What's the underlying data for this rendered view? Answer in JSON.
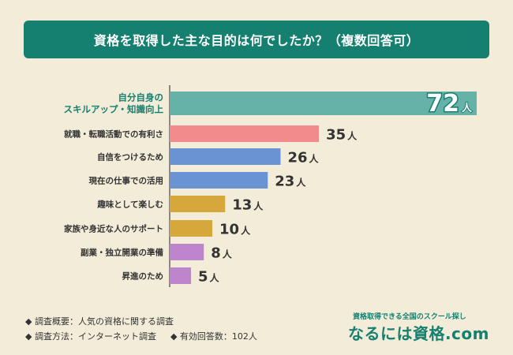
{
  "header": {
    "title": "資格を取得した主な目的は何でしたか？（複数回答可）"
  },
  "chart_data": {
    "type": "bar",
    "orientation": "horizontal",
    "title": "資格を取得した主な目的は何でしたか？（複数回答可）",
    "unit": "人",
    "categories": [
      [
        "自分自身の",
        "スキルアップ・知識向上"
      ],
      [
        "就職・転職活動での有利さ"
      ],
      [
        "自信をつけるため"
      ],
      [
        "現在の仕事での活用"
      ],
      [
        "趣味として楽しむ"
      ],
      [
        "家族や身近な人のサポート"
      ],
      [
        "副業・独立開業の準備"
      ],
      [
        "昇進のため"
      ]
    ],
    "values": [
      72,
      35,
      26,
      23,
      13,
      10,
      8,
      5
    ],
    "colors": [
      "#66b2a9",
      "#f28b8b",
      "#6a93d4",
      "#6a93d4",
      "#d6a73b",
      "#d6a73b",
      "#be85cf",
      "#be85cf"
    ],
    "grid": false
  },
  "footer": {
    "notes": [
      "◆ 調査概要：人気の資格に関する調査",
      "◆ 調査方法：インターネット調査",
      "◆ 有効回答数：102人"
    ]
  },
  "brand": {
    "tagline": "資格取得できる全国のスクール探し",
    "logo": "なるには資格.com"
  }
}
